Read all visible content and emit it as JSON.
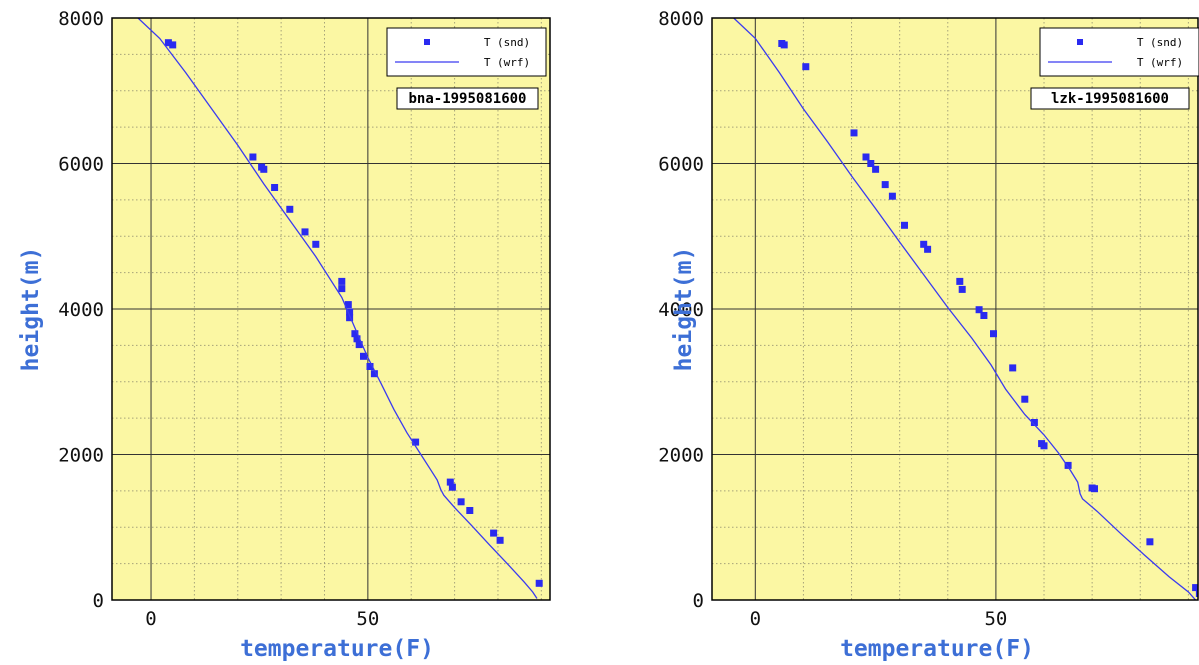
{
  "chart_data": [
    {
      "type": "scatter",
      "title": "",
      "annotation": "bna-1995081600",
      "xlabel": "temperature(F)",
      "ylabel": "height(m)",
      "xlim": [
        -9,
        92
      ],
      "ylim": [
        0,
        8000
      ],
      "xticks": [
        0,
        50
      ],
      "yticks": [
        0,
        2000,
        4000,
        6000,
        8000
      ],
      "x_minor_step": 10,
      "y_minor_step": 500,
      "grid": true,
      "legend": {
        "position": "top-right",
        "entries": [
          "T (snd)",
          "T (wrf)"
        ]
      },
      "series": [
        {
          "name": "T (snd)",
          "kind": "points",
          "color": "#2a2af0",
          "points": [
            [
              4,
              7660
            ],
            [
              5,
              7630
            ],
            [
              23.5,
              6090
            ],
            [
              25.5,
              5950
            ],
            [
              26,
              5920
            ],
            [
              28.5,
              5670
            ],
            [
              32,
              5370
            ],
            [
              35.5,
              5060
            ],
            [
              38,
              4890
            ],
            [
              44,
              4380
            ],
            [
              44,
              4280
            ],
            [
              45.5,
              4060
            ],
            [
              45.8,
              3960
            ],
            [
              45.8,
              3880
            ],
            [
              47,
              3660
            ],
            [
              47.5,
              3590
            ],
            [
              48,
              3510
            ],
            [
              49,
              3350
            ],
            [
              50.5,
              3210
            ],
            [
              51.5,
              3110
            ],
            [
              61,
              2170
            ],
            [
              69,
              1620
            ],
            [
              69.5,
              1550
            ],
            [
              71.5,
              1350
            ],
            [
              73.5,
              1230
            ],
            [
              79,
              920
            ],
            [
              80.5,
              820
            ],
            [
              89.5,
              230
            ]
          ]
        },
        {
          "name": "T (wrf)",
          "kind": "line",
          "color": "#3a3af0",
          "points": [
            [
              -3,
              8000
            ],
            [
              2,
              7720
            ],
            [
              8,
              7250
            ],
            [
              14,
              6750
            ],
            [
              20,
              6250
            ],
            [
              26,
              5720
            ],
            [
              32,
              5220
            ],
            [
              38,
              4720
            ],
            [
              44,
              4160
            ],
            [
              47,
              3740
            ],
            [
              50,
              3330
            ],
            [
              53,
              2980
            ],
            [
              56,
              2620
            ],
            [
              59,
              2300
            ],
            [
              62,
              2020
            ],
            [
              64.5,
              1790
            ],
            [
              66,
              1650
            ],
            [
              66.8,
              1520
            ],
            [
              67.5,
              1440
            ],
            [
              70,
              1270
            ],
            [
              74,
              1020
            ],
            [
              78,
              760
            ],
            [
              82,
              510
            ],
            [
              86,
              250
            ],
            [
              88,
              110
            ],
            [
              89,
              20
            ]
          ]
        }
      ]
    },
    {
      "type": "scatter",
      "title": "",
      "annotation": "lzk-1995081600",
      "xlabel": "temperature(F)",
      "ylabel": "height(m)",
      "xlim": [
        -9,
        92
      ],
      "ylim": [
        0,
        8000
      ],
      "xticks": [
        0,
        50
      ],
      "yticks": [
        0,
        2000,
        4000,
        6000,
        8000
      ],
      "x_minor_step": 10,
      "y_minor_step": 500,
      "grid": true,
      "legend": {
        "position": "top-right",
        "entries": [
          "T (snd)",
          "T (wrf)"
        ]
      },
      "series": [
        {
          "name": "T (snd)",
          "kind": "points",
          "color": "#2a2af0",
          "points": [
            [
              5.5,
              7650
            ],
            [
              6,
              7630
            ],
            [
              10.5,
              7330
            ],
            [
              20.5,
              6420
            ],
            [
              23,
              6090
            ],
            [
              24,
              6000
            ],
            [
              25,
              5920
            ],
            [
              27,
              5710
            ],
            [
              28.5,
              5550
            ],
            [
              31,
              5150
            ],
            [
              35,
              4890
            ],
            [
              35.8,
              4820
            ],
            [
              42.5,
              4380
            ],
            [
              43,
              4270
            ],
            [
              46.5,
              3990
            ],
            [
              47.5,
              3910
            ],
            [
              49.5,
              3660
            ],
            [
              53.5,
              3190
            ],
            [
              56,
              2760
            ],
            [
              58,
              2440
            ],
            [
              59.5,
              2150
            ],
            [
              60,
              2120
            ],
            [
              65,
              1850
            ],
            [
              70,
              1540
            ],
            [
              70.5,
              1530
            ],
            [
              82,
              800
            ],
            [
              91.5,
              170
            ],
            [
              92.3,
              90
            ]
          ]
        },
        {
          "name": "T (wrf)",
          "kind": "line",
          "color": "#3a3af0",
          "points": [
            [
              -4.5,
              8000
            ],
            [
              0,
              7720
            ],
            [
              5,
              7250
            ],
            [
              10,
              6750
            ],
            [
              15,
              6300
            ],
            [
              20,
              5830
            ],
            [
              25,
              5380
            ],
            [
              30,
              4920
            ],
            [
              35,
              4470
            ],
            [
              40,
              4020
            ],
            [
              45,
              3600
            ],
            [
              49,
              3230
            ],
            [
              52,
              2900
            ],
            [
              56,
              2550
            ],
            [
              60,
              2270
            ],
            [
              63,
              2020
            ],
            [
              65.5,
              1780
            ],
            [
              67,
              1620
            ],
            [
              67.5,
              1460
            ],
            [
              68,
              1390
            ],
            [
              71,
              1220
            ],
            [
              76,
              910
            ],
            [
              81,
              610
            ],
            [
              86,
              320
            ],
            [
              90,
              110
            ],
            [
              91.5,
              0
            ]
          ]
        }
      ]
    }
  ]
}
